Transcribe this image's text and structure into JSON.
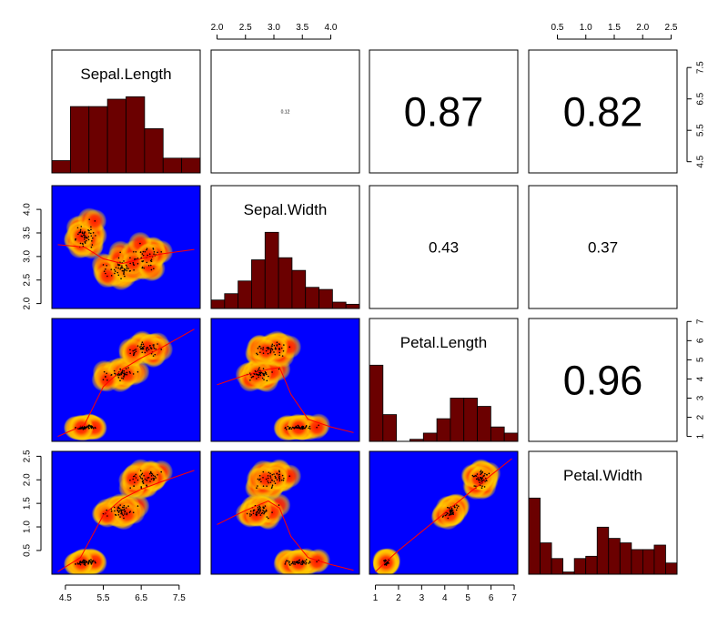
{
  "chart_data": {
    "type": "scatter",
    "title": "",
    "variables": [
      "Sepal.Length",
      "Sepal.Width",
      "Petal.Length",
      "Petal.Width"
    ],
    "ticks": [
      [
        "4.5",
        "5.5",
        "6.5",
        "7.5"
      ],
      [
        "2.0",
        "2.5",
        "3.0",
        "3.5",
        "4.0"
      ],
      [
        "1",
        "2",
        "3",
        "4",
        "5",
        "6",
        "7"
      ],
      [
        "0.5",
        "1.0",
        "1.5",
        "2.0",
        "2.5"
      ]
    ],
    "bottom_ticks_col1": [
      "4.5",
      "5.5",
      "6.5",
      "7.5"
    ],
    "correlations": [
      {
        "row": 1,
        "col": 2,
        "label": "0.12",
        "size": "tiny"
      },
      {
        "row": 1,
        "col": 3,
        "label": "0.87",
        "size": "large"
      },
      {
        "row": 1,
        "col": 4,
        "label": "0.82",
        "size": "large"
      },
      {
        "row": 2,
        "col": 3,
        "label": "0.43",
        "size": "medium"
      },
      {
        "row": 2,
        "col": 4,
        "label": "0.37",
        "size": "medium"
      },
      {
        "row": 3,
        "col": 4,
        "label": "0.96",
        "size": "large"
      }
    ],
    "histograms": [
      {
        "variable": "Sepal.Length",
        "range": [
          4.3,
          7.9
        ],
        "counts": [
          5,
          27,
          27,
          30,
          31,
          18,
          6,
          6
        ]
      },
      {
        "variable": "Sepal.Width",
        "range": [
          2.0,
          4.4
        ],
        "counts": [
          4,
          7,
          13,
          23,
          36,
          24,
          18,
          10,
          9,
          3,
          2
        ]
      },
      {
        "variable": "Petal.Length",
        "range": [
          1.0,
          6.9
        ],
        "counts": [
          37,
          13,
          0,
          1,
          4,
          11,
          21,
          21,
          17,
          7,
          4
        ]
      },
      {
        "variable": "Petal.Width",
        "range": [
          0.1,
          2.5
        ],
        "counts": [
          34,
          14,
          7,
          1,
          7,
          8,
          21,
          16,
          14,
          11,
          11,
          13,
          5
        ]
      }
    ],
    "panel_style": {
      "background": "#0000ff",
      "density_colors": [
        "#ff0000",
        "#ff8000",
        "#ffd000"
      ],
      "smoother_color": "#ff0000",
      "hist_fill": "#6b0000"
    }
  }
}
